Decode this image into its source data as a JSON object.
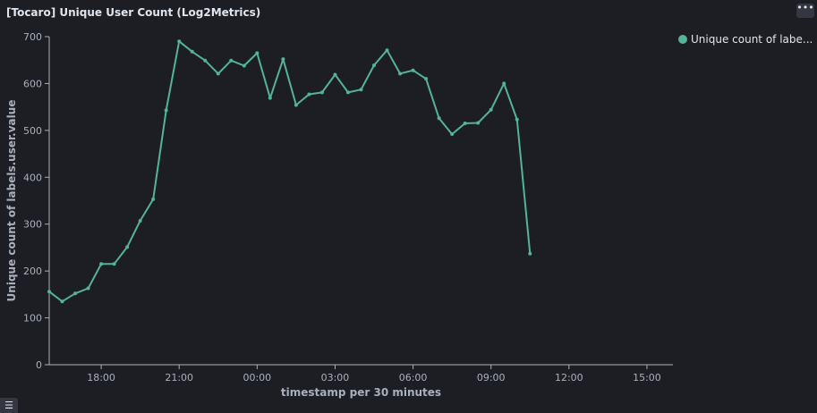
{
  "panel": {
    "title": "[Tocaro] Unique User Count (Log2Metrics)",
    "options_icon": "ellipsis-icon",
    "legend_toggle_icon": "list-icon"
  },
  "colors": {
    "background": "#1d1e24",
    "series": "#54b399",
    "axis": "#a9b0bc",
    "text": "#dfe5ef"
  },
  "chart_data": {
    "type": "line",
    "xlabel": "timestamp per 30 minutes",
    "ylabel": "Unique count of labels.user.value",
    "ylim": [
      0,
      700
    ],
    "yticks": [
      0,
      100,
      200,
      300,
      400,
      500,
      600,
      700
    ],
    "xlim": [
      "16:00",
      "16:00 (+1 day)"
    ],
    "xticks": [
      "18:00",
      "21:00",
      "00:00",
      "03:00",
      "06:00",
      "09:00",
      "12:00",
      "15:00"
    ],
    "grid": false,
    "legend_position": "top-right",
    "series": [
      {
        "name": "Unique count of labe...",
        "color": "#54b399",
        "x": [
          "16:00",
          "16:30",
          "17:00",
          "17:30",
          "18:00",
          "18:30",
          "19:00",
          "19:30",
          "20:00",
          "20:30",
          "21:00",
          "21:30",
          "22:00",
          "22:30",
          "23:00",
          "23:30",
          "00:00",
          "00:30",
          "01:00",
          "01:30",
          "02:00",
          "02:30",
          "03:00",
          "03:30",
          "04:00",
          "04:30",
          "05:00",
          "05:30",
          "06:00",
          "06:30",
          "07:00",
          "07:30",
          "08:00",
          "08:30",
          "09:00",
          "09:30",
          "10:00",
          "10:30"
        ],
        "values": [
          156,
          135,
          152,
          163,
          215,
          215,
          251,
          307,
          353,
          543,
          690,
          668,
          649,
          621,
          649,
          638,
          665,
          569,
          652,
          554,
          577,
          581,
          619,
          581,
          587,
          639,
          671,
          621,
          628,
          610,
          526,
          492,
          515,
          516,
          544,
          600,
          523,
          237
        ]
      }
    ]
  }
}
